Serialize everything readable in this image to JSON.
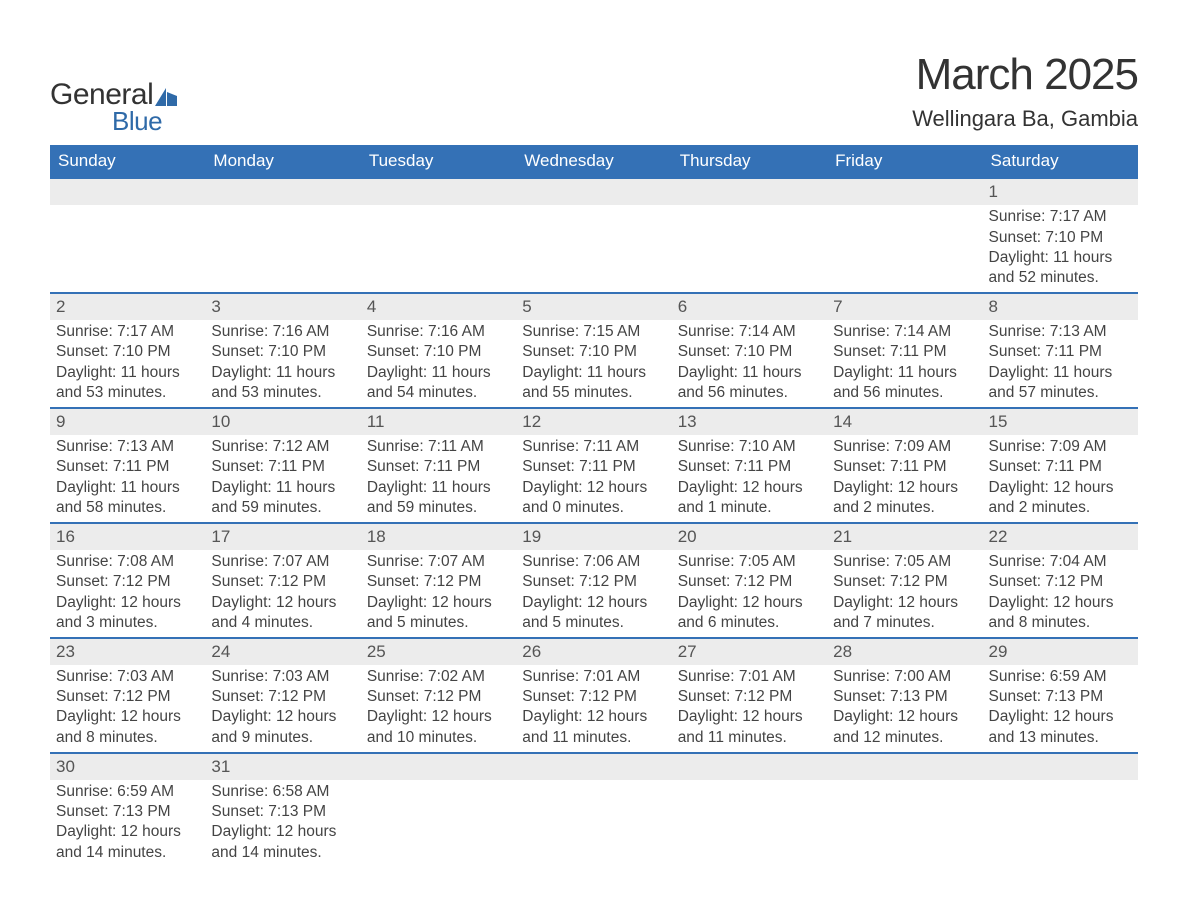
{
  "logo": {
    "text_general": "General",
    "text_blue": "Blue",
    "icon_color": "#2f6aa8"
  },
  "title": "March 2025",
  "location": "Wellingara Ba, Gambia",
  "header_bg": "#3471b6",
  "header_fg": "#ffffff",
  "day_headers": [
    "Sunday",
    "Monday",
    "Tuesday",
    "Wednesday",
    "Thursday",
    "Friday",
    "Saturday"
  ],
  "daynum_bg": "#ececec",
  "text_color": "#444444",
  "border_color": "#3471b6",
  "title_fontsize": 44,
  "location_fontsize": 22,
  "dayheader_fontsize": 17,
  "detail_fontsize": 15.5,
  "weeks": [
    [
      {
        "num": "",
        "sunrise": "",
        "sunset": "",
        "daylight": ""
      },
      {
        "num": "",
        "sunrise": "",
        "sunset": "",
        "daylight": ""
      },
      {
        "num": "",
        "sunrise": "",
        "sunset": "",
        "daylight": ""
      },
      {
        "num": "",
        "sunrise": "",
        "sunset": "",
        "daylight": ""
      },
      {
        "num": "",
        "sunrise": "",
        "sunset": "",
        "daylight": ""
      },
      {
        "num": "",
        "sunrise": "",
        "sunset": "",
        "daylight": ""
      },
      {
        "num": "1",
        "sunrise": "Sunrise: 7:17 AM",
        "sunset": "Sunset: 7:10 PM",
        "daylight": "Daylight: 11 hours and 52 minutes."
      }
    ],
    [
      {
        "num": "2",
        "sunrise": "Sunrise: 7:17 AM",
        "sunset": "Sunset: 7:10 PM",
        "daylight": "Daylight: 11 hours and 53 minutes."
      },
      {
        "num": "3",
        "sunrise": "Sunrise: 7:16 AM",
        "sunset": "Sunset: 7:10 PM",
        "daylight": "Daylight: 11 hours and 53 minutes."
      },
      {
        "num": "4",
        "sunrise": "Sunrise: 7:16 AM",
        "sunset": "Sunset: 7:10 PM",
        "daylight": "Daylight: 11 hours and 54 minutes."
      },
      {
        "num": "5",
        "sunrise": "Sunrise: 7:15 AM",
        "sunset": "Sunset: 7:10 PM",
        "daylight": "Daylight: 11 hours and 55 minutes."
      },
      {
        "num": "6",
        "sunrise": "Sunrise: 7:14 AM",
        "sunset": "Sunset: 7:10 PM",
        "daylight": "Daylight: 11 hours and 56 minutes."
      },
      {
        "num": "7",
        "sunrise": "Sunrise: 7:14 AM",
        "sunset": "Sunset: 7:11 PM",
        "daylight": "Daylight: 11 hours and 56 minutes."
      },
      {
        "num": "8",
        "sunrise": "Sunrise: 7:13 AM",
        "sunset": "Sunset: 7:11 PM",
        "daylight": "Daylight: 11 hours and 57 minutes."
      }
    ],
    [
      {
        "num": "9",
        "sunrise": "Sunrise: 7:13 AM",
        "sunset": "Sunset: 7:11 PM",
        "daylight": "Daylight: 11 hours and 58 minutes."
      },
      {
        "num": "10",
        "sunrise": "Sunrise: 7:12 AM",
        "sunset": "Sunset: 7:11 PM",
        "daylight": "Daylight: 11 hours and 59 minutes."
      },
      {
        "num": "11",
        "sunrise": "Sunrise: 7:11 AM",
        "sunset": "Sunset: 7:11 PM",
        "daylight": "Daylight: 11 hours and 59 minutes."
      },
      {
        "num": "12",
        "sunrise": "Sunrise: 7:11 AM",
        "sunset": "Sunset: 7:11 PM",
        "daylight": "Daylight: 12 hours and 0 minutes."
      },
      {
        "num": "13",
        "sunrise": "Sunrise: 7:10 AM",
        "sunset": "Sunset: 7:11 PM",
        "daylight": "Daylight: 12 hours and 1 minute."
      },
      {
        "num": "14",
        "sunrise": "Sunrise: 7:09 AM",
        "sunset": "Sunset: 7:11 PM",
        "daylight": "Daylight: 12 hours and 2 minutes."
      },
      {
        "num": "15",
        "sunrise": "Sunrise: 7:09 AM",
        "sunset": "Sunset: 7:11 PM",
        "daylight": "Daylight: 12 hours and 2 minutes."
      }
    ],
    [
      {
        "num": "16",
        "sunrise": "Sunrise: 7:08 AM",
        "sunset": "Sunset: 7:12 PM",
        "daylight": "Daylight: 12 hours and 3 minutes."
      },
      {
        "num": "17",
        "sunrise": "Sunrise: 7:07 AM",
        "sunset": "Sunset: 7:12 PM",
        "daylight": "Daylight: 12 hours and 4 minutes."
      },
      {
        "num": "18",
        "sunrise": "Sunrise: 7:07 AM",
        "sunset": "Sunset: 7:12 PM",
        "daylight": "Daylight: 12 hours and 5 minutes."
      },
      {
        "num": "19",
        "sunrise": "Sunrise: 7:06 AM",
        "sunset": "Sunset: 7:12 PM",
        "daylight": "Daylight: 12 hours and 5 minutes."
      },
      {
        "num": "20",
        "sunrise": "Sunrise: 7:05 AM",
        "sunset": "Sunset: 7:12 PM",
        "daylight": "Daylight: 12 hours and 6 minutes."
      },
      {
        "num": "21",
        "sunrise": "Sunrise: 7:05 AM",
        "sunset": "Sunset: 7:12 PM",
        "daylight": "Daylight: 12 hours and 7 minutes."
      },
      {
        "num": "22",
        "sunrise": "Sunrise: 7:04 AM",
        "sunset": "Sunset: 7:12 PM",
        "daylight": "Daylight: 12 hours and 8 minutes."
      }
    ],
    [
      {
        "num": "23",
        "sunrise": "Sunrise: 7:03 AM",
        "sunset": "Sunset: 7:12 PM",
        "daylight": "Daylight: 12 hours and 8 minutes."
      },
      {
        "num": "24",
        "sunrise": "Sunrise: 7:03 AM",
        "sunset": "Sunset: 7:12 PM",
        "daylight": "Daylight: 12 hours and 9 minutes."
      },
      {
        "num": "25",
        "sunrise": "Sunrise: 7:02 AM",
        "sunset": "Sunset: 7:12 PM",
        "daylight": "Daylight: 12 hours and 10 minutes."
      },
      {
        "num": "26",
        "sunrise": "Sunrise: 7:01 AM",
        "sunset": "Sunset: 7:12 PM",
        "daylight": "Daylight: 12 hours and 11 minutes."
      },
      {
        "num": "27",
        "sunrise": "Sunrise: 7:01 AM",
        "sunset": "Sunset: 7:12 PM",
        "daylight": "Daylight: 12 hours and 11 minutes."
      },
      {
        "num": "28",
        "sunrise": "Sunrise: 7:00 AM",
        "sunset": "Sunset: 7:13 PM",
        "daylight": "Daylight: 12 hours and 12 minutes."
      },
      {
        "num": "29",
        "sunrise": "Sunrise: 6:59 AM",
        "sunset": "Sunset: 7:13 PM",
        "daylight": "Daylight: 12 hours and 13 minutes."
      }
    ],
    [
      {
        "num": "30",
        "sunrise": "Sunrise: 6:59 AM",
        "sunset": "Sunset: 7:13 PM",
        "daylight": "Daylight: 12 hours and 14 minutes."
      },
      {
        "num": "31",
        "sunrise": "Sunrise: 6:58 AM",
        "sunset": "Sunset: 7:13 PM",
        "daylight": "Daylight: 12 hours and 14 minutes."
      },
      {
        "num": "",
        "sunrise": "",
        "sunset": "",
        "daylight": ""
      },
      {
        "num": "",
        "sunrise": "",
        "sunset": "",
        "daylight": ""
      },
      {
        "num": "",
        "sunrise": "",
        "sunset": "",
        "daylight": ""
      },
      {
        "num": "",
        "sunrise": "",
        "sunset": "",
        "daylight": ""
      },
      {
        "num": "",
        "sunrise": "",
        "sunset": "",
        "daylight": ""
      }
    ]
  ]
}
